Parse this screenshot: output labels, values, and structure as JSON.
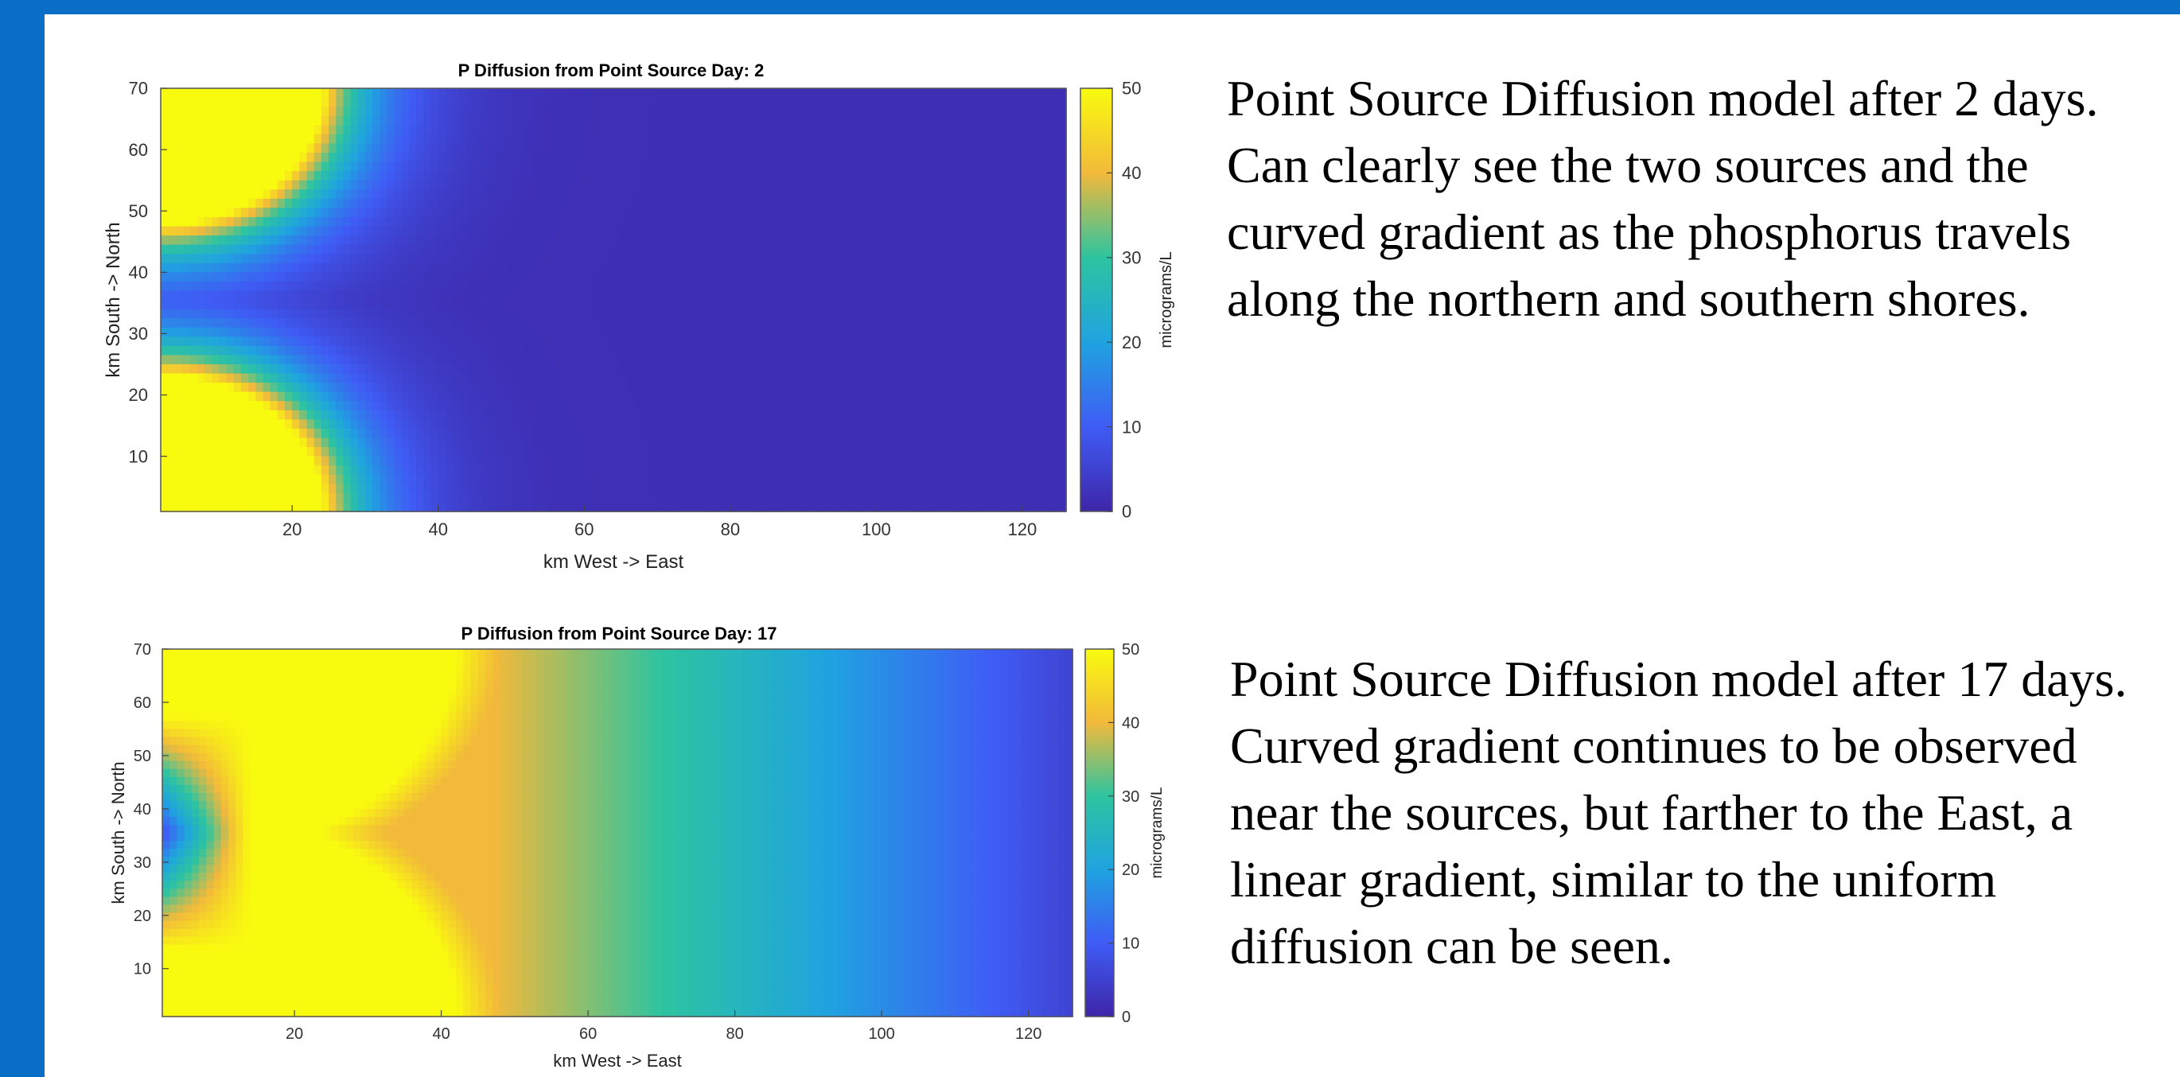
{
  "chart_data": [
    {
      "type": "heatmap",
      "title": "P Diffusion from Point Source Day: 2",
      "xlabel": "km West -> East",
      "ylabel": "km South -> North",
      "xlim": [
        2,
        126
      ],
      "ylim": [
        1,
        70
      ],
      "xticks": [
        "20",
        "40",
        "60",
        "80",
        "100",
        "120"
      ],
      "yticks": [
        "10",
        "20",
        "30",
        "40",
        "50",
        "60",
        "70"
      ],
      "colorbar": {
        "label": "micrograms/L",
        "range": [
          0,
          50
        ],
        "ticks": [
          "0",
          "10",
          "20",
          "30",
          "40",
          "50"
        ],
        "colormap": "parula"
      },
      "sources": [
        {
          "x": 2,
          "y": 1
        },
        {
          "x": 2,
          "y": 70
        }
      ],
      "saturation_radius_km": 22
    },
    {
      "type": "heatmap",
      "title": "P Diffusion from Point Source Day: 17",
      "xlabel": "km West -> East",
      "ylabel": "km South -> North",
      "xlim": [
        2,
        126
      ],
      "ylim": [
        1,
        70
      ],
      "xticks": [
        "20",
        "40",
        "60",
        "80",
        "100",
        "120"
      ],
      "yticks": [
        "10",
        "20",
        "30",
        "40",
        "50",
        "60",
        "70"
      ],
      "colorbar": {
        "label": "micrograms/L",
        "range": [
          0,
          50
        ],
        "ticks": [
          "0",
          "10",
          "20",
          "30",
          "40",
          "50"
        ],
        "colormap": "parula"
      },
      "sources": [
        {
          "x": 2,
          "y": 1
        },
        {
          "x": 2,
          "y": 70
        }
      ],
      "saturation_radius_km": 40
    }
  ],
  "captions": [
    "Point Source Diffusion model after 2 days. Can clearly see the two sources and the curved gradient as the phosphorus travels along the northern and southern shores.",
    "Point Source Diffusion model after 17 days. Curved gradient continues to be observed near the sources, but farther to the East, a linear gradient, similar to the uniform diffusion can be seen."
  ],
  "colors": {
    "frame": "#0a6ec6",
    "panel": "#ffffff"
  }
}
